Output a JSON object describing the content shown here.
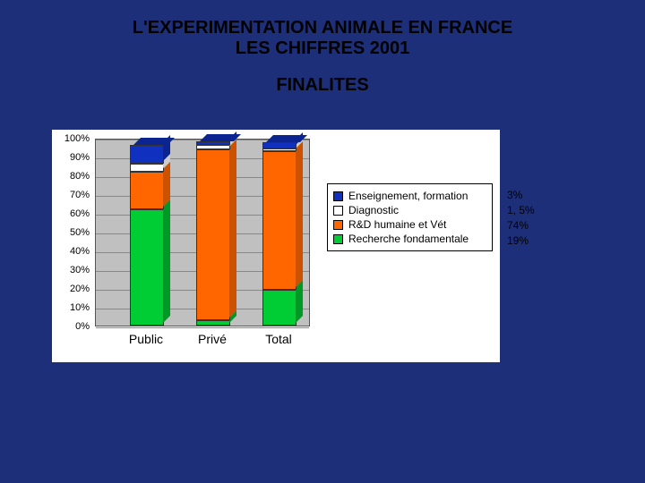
{
  "title": {
    "line1": "L'EXPERIMENTATION ANIMALE EN FRANCE",
    "line2": "LES CHIFFRES 2001",
    "subtitle": "FINALITES"
  },
  "chart": {
    "type": "stacked-bar",
    "background_color": "#ffffff",
    "plot_bg": "#c0c0c0",
    "grid_color": "#888888",
    "ylim": [
      0,
      100
    ],
    "ytick_step": 10,
    "y_suffix": "%",
    "categories": [
      "Public",
      "Privé",
      "Total"
    ],
    "series": [
      {
        "name": "Recherche fondamentale",
        "color": "#00cc33",
        "color_dark": "#009926",
        "values": [
          62,
          3,
          19
        ]
      },
      {
        "name": "R&D humaine et Vét",
        "color": "#ff6600",
        "color_dark": "#cc5200",
        "values": [
          20,
          91,
          74
        ]
      },
      {
        "name": "Diagnostic",
        "color": "#ffffff",
        "color_dark": "#cccccc",
        "values": [
          4,
          2,
          1.5
        ]
      },
      {
        "name": "Enseignement, formation",
        "color": "#1030c0",
        "color_dark": "#0c2490",
        "values": [
          10,
          2,
          3
        ]
      }
    ],
    "legend_order": [
      3,
      2,
      1,
      0
    ]
  },
  "percent_labels": [
    "3%",
    "1, 5%",
    "74%",
    "19%"
  ]
}
